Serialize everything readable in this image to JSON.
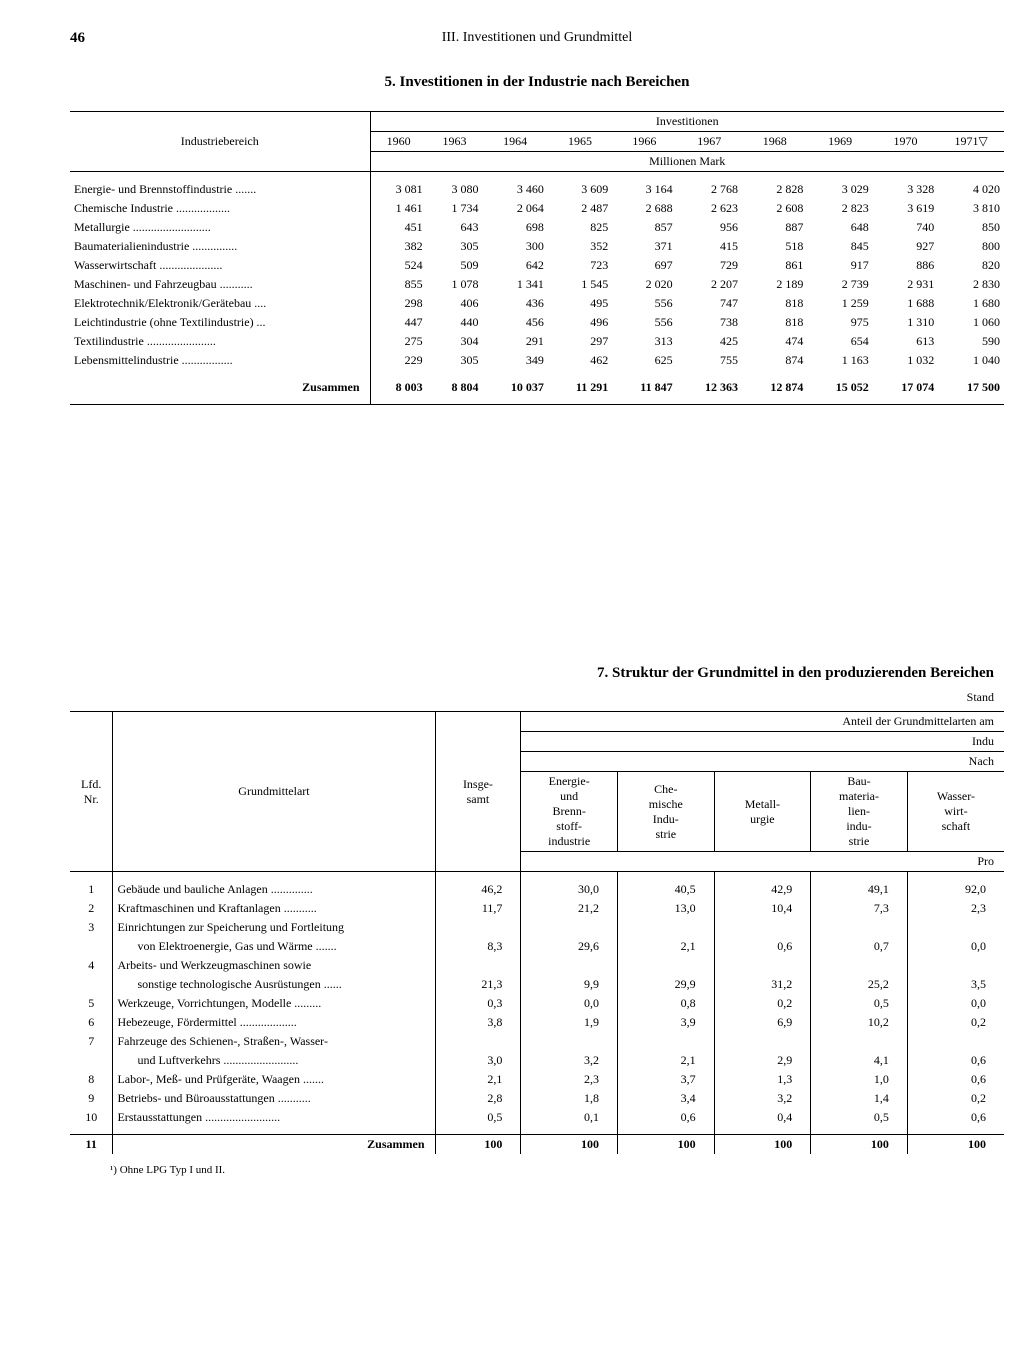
{
  "page": {
    "number": "46",
    "header": "III. Investitionen und Grundmittel"
  },
  "table1": {
    "title": "5. Investitionen in der Industrie nach Bereichen",
    "col_header_main": "Investitionen",
    "row_header": "Industriebereich",
    "unit_header": "Millionen Mark",
    "years": [
      "1960",
      "1963",
      "1964",
      "1965",
      "1966",
      "1967",
      "1968",
      "1969",
      "1970",
      "1971▽"
    ],
    "rows": [
      {
        "label": "Energie- und Brennstoffindustrie .......",
        "vals": [
          "3 081",
          "3 080",
          "3 460",
          "3 609",
          "3 164",
          "2 768",
          "2 828",
          "3 029",
          "3 328",
          "4 020"
        ]
      },
      {
        "label": "Chemische Industrie ..................",
        "vals": [
          "1 461",
          "1 734",
          "2 064",
          "2 487",
          "2 688",
          "2 623",
          "2 608",
          "2 823",
          "3 619",
          "3 810"
        ]
      },
      {
        "label": "Metallurgie ..........................",
        "vals": [
          "451",
          "643",
          "698",
          "825",
          "857",
          "956",
          "887",
          "648",
          "740",
          "850"
        ]
      },
      {
        "label": "Baumaterialienindustrie ...............",
        "vals": [
          "382",
          "305",
          "300",
          "352",
          "371",
          "415",
          "518",
          "845",
          "927",
          "800"
        ]
      },
      {
        "label": "Wasserwirtschaft .....................",
        "vals": [
          "524",
          "509",
          "642",
          "723",
          "697",
          "729",
          "861",
          "917",
          "886",
          "820"
        ]
      },
      {
        "label": "Maschinen- und Fahrzeugbau ...........",
        "vals": [
          "855",
          "1 078",
          "1 341",
          "1 545",
          "2 020",
          "2 207",
          "2 189",
          "2 739",
          "2 931",
          "2 830"
        ]
      },
      {
        "label": "Elektrotechnik/Elektronik/Gerätebau ....",
        "vals": [
          "298",
          "406",
          "436",
          "495",
          "556",
          "747",
          "818",
          "1 259",
          "1 688",
          "1 680"
        ]
      },
      {
        "label": "Leichtindustrie (ohne Textilindustrie) ...",
        "vals": [
          "447",
          "440",
          "456",
          "496",
          "556",
          "738",
          "818",
          "975",
          "1 310",
          "1 060"
        ]
      },
      {
        "label": "Textilindustrie .......................",
        "vals": [
          "275",
          "304",
          "291",
          "297",
          "313",
          "425",
          "474",
          "654",
          "613",
          "590"
        ]
      },
      {
        "label": "Lebensmittelindustrie .................",
        "vals": [
          "229",
          "305",
          "349",
          "462",
          "625",
          "755",
          "874",
          "1 163",
          "1 032",
          "1 040"
        ]
      }
    ],
    "total_label": "Zusammen",
    "total_vals": [
      "8 003",
      "8 804",
      "10 037",
      "11 291",
      "11 847",
      "12 363",
      "12 874",
      "15 052",
      "17 074",
      "17 500"
    ]
  },
  "table2": {
    "title": "7. Struktur der Grundmittel in den produzierenden Bereichen",
    "stand": "Stand",
    "hdr_anteil": "Anteil der Grundmittelarten am",
    "hdr_indu": "Indu",
    "hdr_nach": "Nach",
    "hdr_lfd": "Lfd.\nNr.",
    "hdr_art": "Grundmittelart",
    "hdr_insge": "Insge-\nsamt",
    "hdr_pro": "Pro",
    "cols": [
      "Energie-\nund\nBrenn-\nstoff-\nindustrie",
      "Che-\nmische\nIndu-\nstrie",
      "Metall-\nurgie",
      "Bau-\nmateria-\nlien-\nindu-\nstrie",
      "Wasser-\nwirt-\nschaft"
    ],
    "rows": [
      {
        "n": "1",
        "label": "Gebäude und bauliche Anlagen ..............",
        "vals": [
          "46,2",
          "30,0",
          "40,5",
          "42,9",
          "49,1",
          "92,0"
        ]
      },
      {
        "n": "2",
        "label": "Kraftmaschinen und Kraftanlagen ...........",
        "vals": [
          "11,7",
          "21,2",
          "13,0",
          "10,4",
          "7,3",
          "2,3"
        ]
      },
      {
        "n": "3",
        "label": "Einrichtungen zur Speicherung und Fortleitung",
        "vals": [
          "",
          "",
          "",
          "",
          "",
          ""
        ]
      },
      {
        "n": "",
        "label": "von Elektroenergie, Gas und Wärme .......",
        "cont": true,
        "vals": [
          "8,3",
          "29,6",
          "2,1",
          "0,6",
          "0,7",
          "0,0"
        ]
      },
      {
        "n": "4",
        "label": "Arbeits- und Werkzeugmaschinen sowie",
        "vals": [
          "",
          "",
          "",
          "",
          "",
          ""
        ]
      },
      {
        "n": "",
        "label": "sonstige technologische Ausrüstungen ......",
        "cont": true,
        "vals": [
          "21,3",
          "9,9",
          "29,9",
          "31,2",
          "25,2",
          "3,5"
        ]
      },
      {
        "n": "5",
        "label": "Werkzeuge, Vorrichtungen, Modelle .........",
        "vals": [
          "0,3",
          "0,0",
          "0,8",
          "0,2",
          "0,5",
          "0,0"
        ]
      },
      {
        "n": "6",
        "label": "Hebezeuge, Fördermittel ...................",
        "vals": [
          "3,8",
          "1,9",
          "3,9",
          "6,9",
          "10,2",
          "0,2"
        ]
      },
      {
        "n": "7",
        "label": "Fahrzeuge des Schienen-, Straßen-, Wasser-",
        "vals": [
          "",
          "",
          "",
          "",
          "",
          ""
        ]
      },
      {
        "n": "",
        "label": "und Luftverkehrs .........................",
        "cont": true,
        "vals": [
          "3,0",
          "3,2",
          "2,1",
          "2,9",
          "4,1",
          "0,6"
        ]
      },
      {
        "n": "8",
        "label": "Labor-, Meß- und Prüfgeräte, Waagen .......",
        "vals": [
          "2,1",
          "2,3",
          "3,7",
          "1,3",
          "1,0",
          "0,6"
        ]
      },
      {
        "n": "9",
        "label": "Betriebs- und Büroausstattungen ...........",
        "vals": [
          "2,8",
          "1,8",
          "3,4",
          "3,2",
          "1,4",
          "0,2"
        ]
      },
      {
        "n": "10",
        "label": "Erstausstattungen .........................",
        "vals": [
          "0,5",
          "0,1",
          "0,6",
          "0,4",
          "0,5",
          "0,6"
        ]
      }
    ],
    "total_n": "11",
    "total_label": "Zusammen",
    "total_vals": [
      "100",
      "100",
      "100",
      "100",
      "100",
      "100"
    ]
  },
  "footnote": "¹) Ohne LPG Typ I und II."
}
